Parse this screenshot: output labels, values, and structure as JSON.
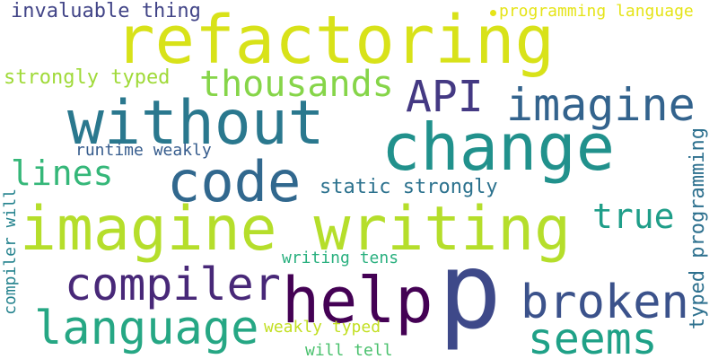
{
  "words": [
    {
      "text": "refactoring",
      "color": "#d8e219"
    },
    {
      "text": "imagine writing",
      "color": "#b5de2b"
    },
    {
      "text": "p",
      "color": "#3e4989"
    },
    {
      "text": "change",
      "color": "#21918c"
    },
    {
      "text": "without",
      "color": "#2a788e"
    },
    {
      "text": "code",
      "color": "#31688e"
    },
    {
      "text": "help",
      "color": "#440154"
    },
    {
      "text": "compiler",
      "color": "#482878"
    },
    {
      "text": "language",
      "color": "#26a784"
    },
    {
      "text": "broken",
      "color": "#3b528b"
    },
    {
      "text": "seems",
      "color": "#1fa187"
    },
    {
      "text": "imagine",
      "color": "#33638d"
    },
    {
      "text": "API",
      "color": "#443983"
    },
    {
      "text": "thousands",
      "color": "#86d549"
    },
    {
      "text": "true",
      "color": "#1f9e89"
    },
    {
      "text": "lines",
      "color": "#35b779"
    },
    {
      "text": "strongly typed",
      "color": "#a0da39"
    },
    {
      "text": "invaluable thing",
      "color": "#414487"
    },
    {
      "text": "programming language",
      "color": "#e5e419"
    },
    {
      "text": "runtime weakly",
      "color": "#365c8d"
    },
    {
      "text": "static strongly",
      "color": "#2c728e"
    },
    {
      "text": "typed programming",
      "color": "#2d708e"
    },
    {
      "text": "compiler will",
      "color": "#25838e"
    },
    {
      "text": "writing tens",
      "color": "#2ab07f"
    },
    {
      "text": "weakly typed",
      "color": "#c2df23"
    },
    {
      "text": "will tell",
      "color": "#4ac16d"
    }
  ],
  "dot_color": "#e5e419"
}
